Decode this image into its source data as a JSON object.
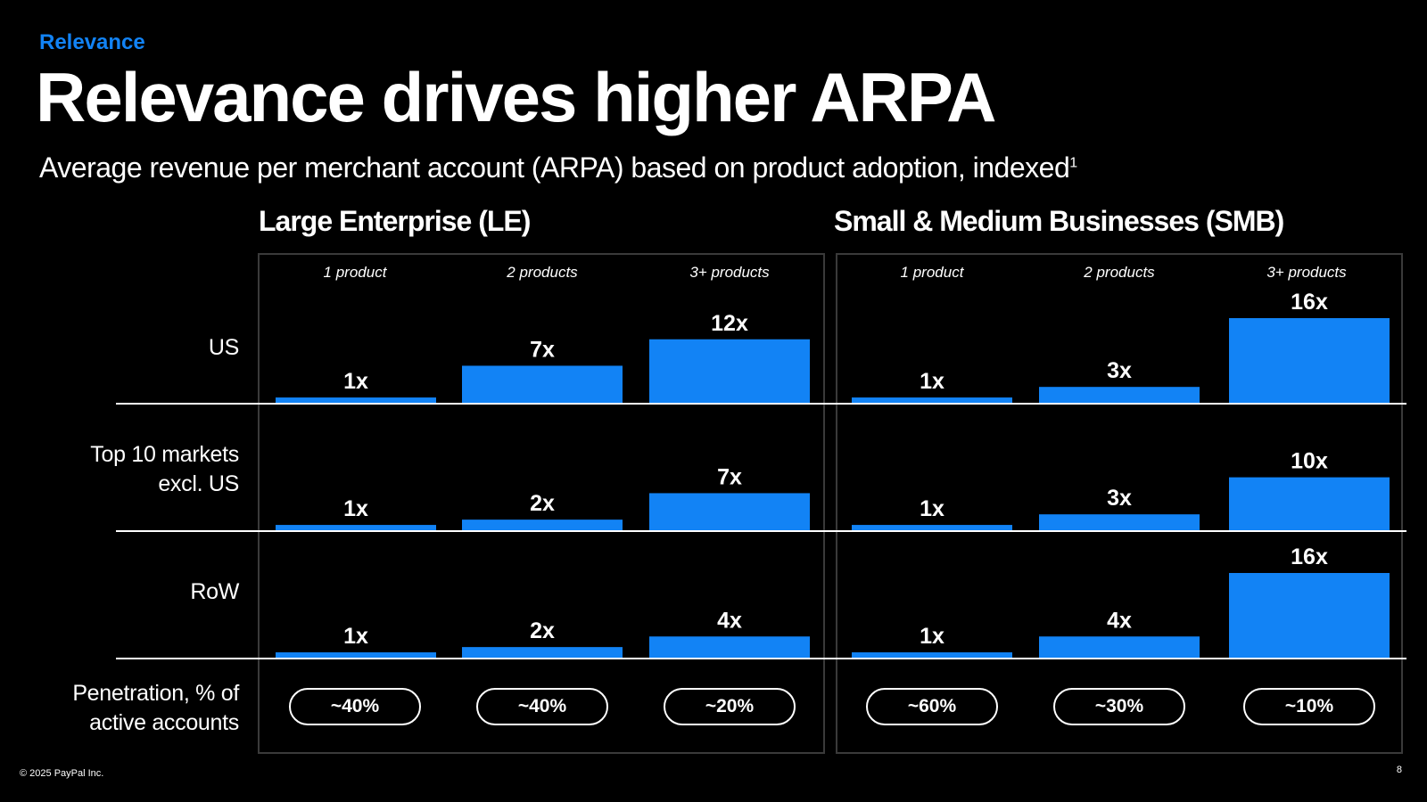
{
  "header": {
    "eyebrow": "Relevance",
    "title": "Relevance drives higher ARPA",
    "subtitle": "Average revenue per merchant account (ARPA) based on product adoption, indexed",
    "subtitle_footnote": "1"
  },
  "colors": {
    "accent": "#1283f5",
    "background": "#000000",
    "text": "#ffffff",
    "border": "#3a3a3a"
  },
  "row_labels": {
    "us": "US",
    "top10_line1": "Top 10 markets",
    "top10_line2": "excl. US",
    "row": "RoW",
    "pen_line1": "Penetration, % of",
    "pen_line2": "active accounts"
  },
  "chart_data": {
    "type": "bar",
    "unit": "x",
    "categories": [
      "1 product",
      "2 products",
      "3+ products"
    ],
    "panels": [
      {
        "title": "Large Enterprise (LE)",
        "rows": [
          {
            "label": "US",
            "values": [
              1,
              7,
              12
            ],
            "labels": [
              "1x",
              "7x",
              "12x"
            ]
          },
          {
            "label": "Top 10 markets excl. US",
            "values": [
              1,
              2,
              7
            ],
            "labels": [
              "1x",
              "2x",
              "7x"
            ]
          },
          {
            "label": "RoW",
            "values": [
              1,
              2,
              4
            ],
            "labels": [
              "1x",
              "2x",
              "4x"
            ]
          }
        ],
        "penetration": [
          "~40%",
          "~40%",
          "~20%"
        ]
      },
      {
        "title": "Small & Medium Businesses (SMB)",
        "rows": [
          {
            "label": "US",
            "values": [
              1,
              3,
              16
            ],
            "labels": [
              "1x",
              "3x",
              "16x"
            ]
          },
          {
            "label": "Top 10 markets excl. US",
            "values": [
              1,
              3,
              10
            ],
            "labels": [
              "1x",
              "3x",
              "10x"
            ]
          },
          {
            "label": "RoW",
            "values": [
              1,
              4,
              16
            ],
            "labels": [
              "1x",
              "4x",
              "16x"
            ]
          }
        ],
        "penetration": [
          "~60%",
          "~30%",
          "~10%"
        ]
      }
    ]
  },
  "footer": {
    "copyright": "© 2025 PayPal Inc.",
    "page_number": "8"
  }
}
